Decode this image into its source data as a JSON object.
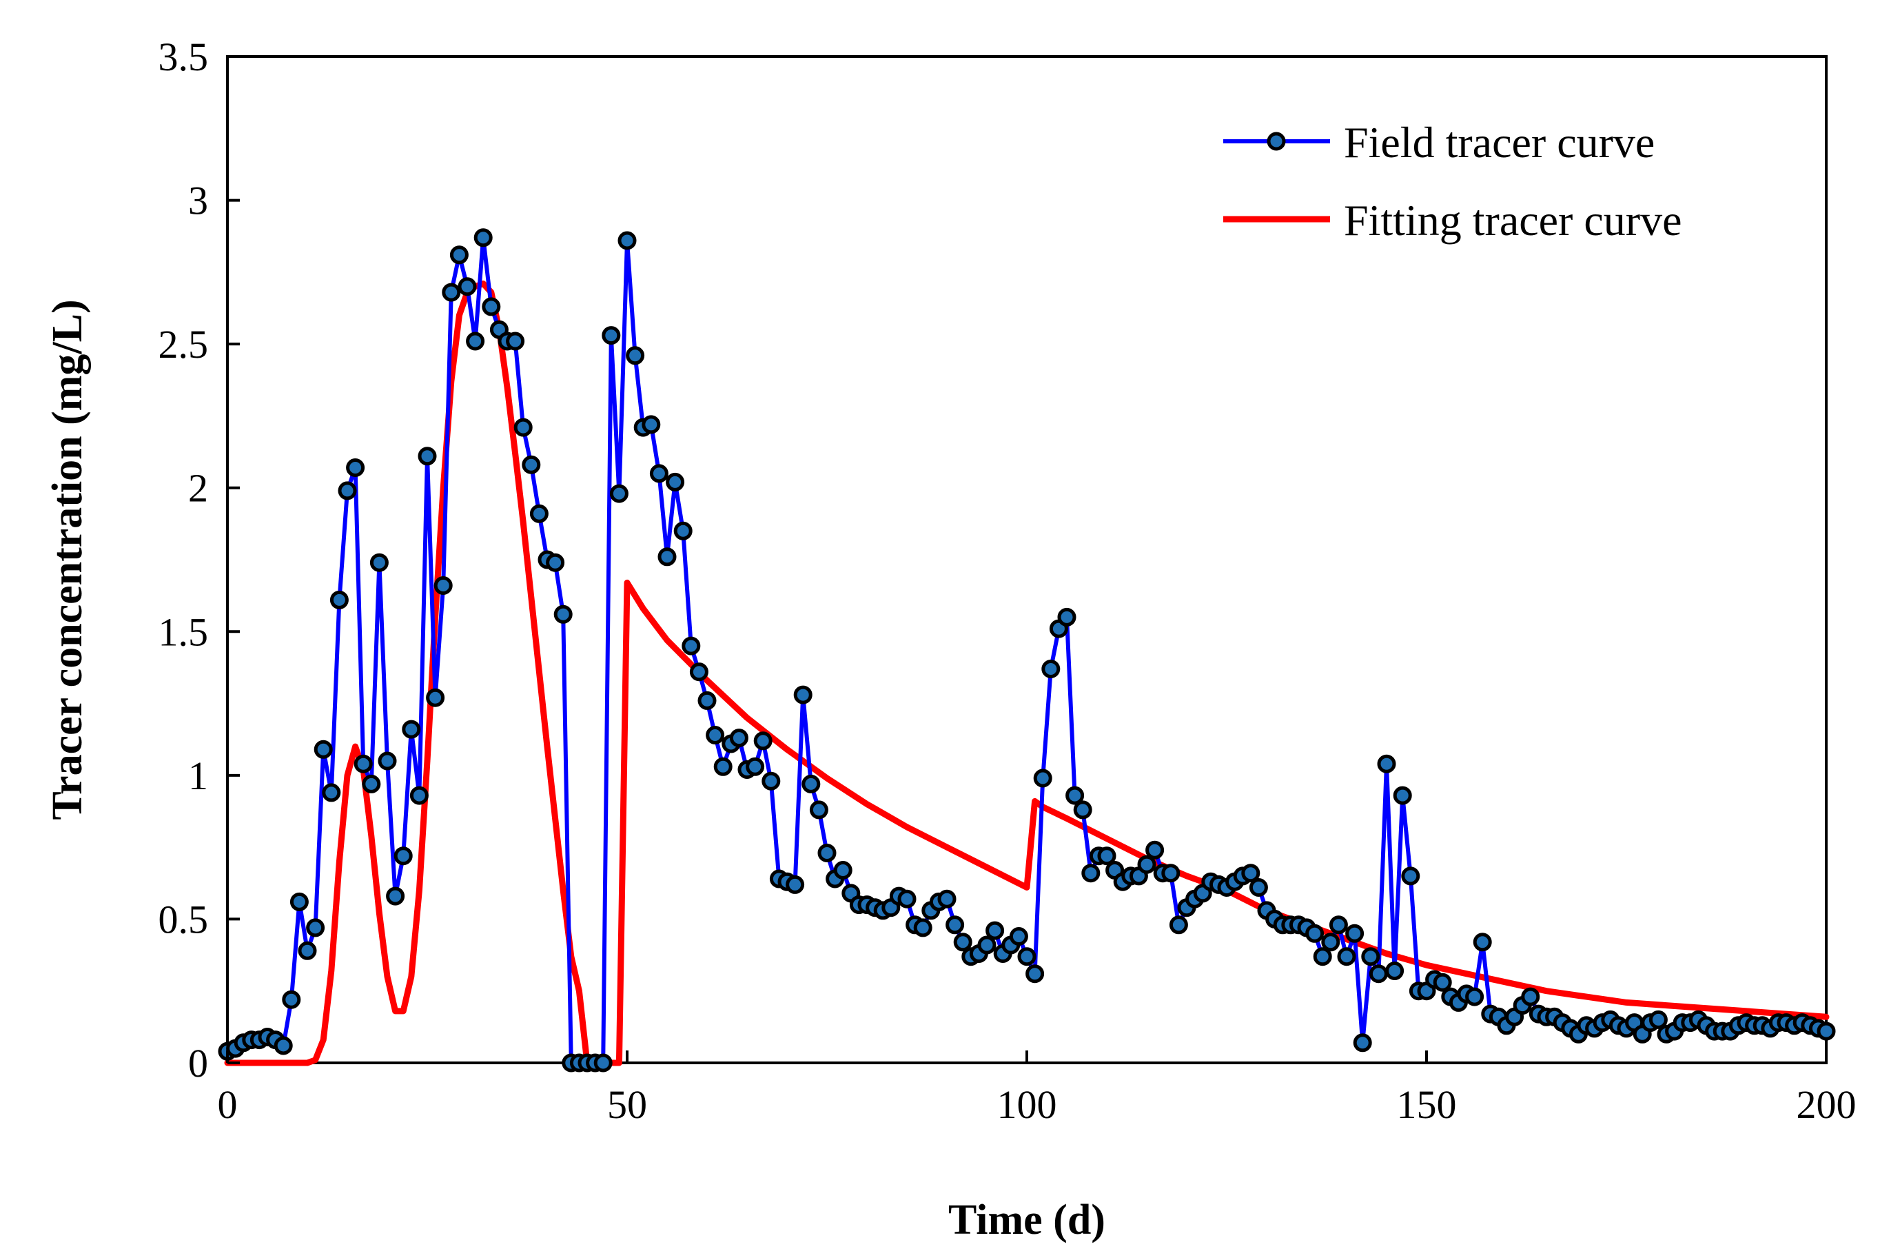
{
  "chart_data": {
    "type": "line",
    "title": "",
    "xlabel": "Time (d)",
    "ylabel": "Tracer concentration (mg/L)",
    "xlim": [
      0,
      200
    ],
    "ylim": [
      0,
      3.5
    ],
    "xticks": [
      0,
      50,
      100,
      150,
      200
    ],
    "xtick_labels": [
      "0",
      "50",
      "100",
      "150",
      "200"
    ],
    "yticks": [
      0,
      0.5,
      1,
      1.5,
      2,
      2.5,
      3,
      3.5
    ],
    "ytick_labels": [
      "0",
      "0.5",
      "1",
      "1.5",
      "2",
      "2.5",
      "3",
      "3.5"
    ],
    "grid": false,
    "legend_position": "top-right",
    "series": [
      {
        "name": "Field tracer curve",
        "style": "line-with-markers",
        "line_color": "#0000ff",
        "marker_fill": "#1f6fb4",
        "marker_edge": "#000000",
        "points": [
          [
            0,
            0.04
          ],
          [
            1,
            0.05
          ],
          [
            2,
            0.07
          ],
          [
            3,
            0.08
          ],
          [
            4,
            0.08
          ],
          [
            5,
            0.09
          ],
          [
            6,
            0.08
          ],
          [
            7,
            0.06
          ],
          [
            8,
            0.22
          ],
          [
            9,
            0.56
          ],
          [
            10,
            0.39
          ],
          [
            11,
            0.47
          ],
          [
            12,
            1.09
          ],
          [
            13,
            0.94
          ],
          [
            14,
            1.61
          ],
          [
            15,
            1.99
          ],
          [
            16,
            2.07
          ],
          [
            17,
            1.04
          ],
          [
            18,
            0.97
          ],
          [
            19,
            1.74
          ],
          [
            20,
            1.05
          ],
          [
            21,
            0.58
          ],
          [
            22,
            0.72
          ],
          [
            23,
            1.16
          ],
          [
            24,
            0.93
          ],
          [
            25,
            2.11
          ],
          [
            26,
            1.27
          ],
          [
            27,
            1.66
          ],
          [
            28,
            2.68
          ],
          [
            29,
            2.81
          ],
          [
            30,
            2.7
          ],
          [
            31,
            2.51
          ],
          [
            32,
            2.87
          ],
          [
            33,
            2.63
          ],
          [
            34,
            2.55
          ],
          [
            35,
            2.51
          ],
          [
            36,
            2.51
          ],
          [
            37,
            2.21
          ],
          [
            38,
            2.08
          ],
          [
            39,
            1.91
          ],
          [
            40,
            1.75
          ],
          [
            41,
            1.74
          ],
          [
            42,
            1.56
          ],
          [
            43,
            0.0
          ],
          [
            44,
            0.0
          ],
          [
            45,
            0.0
          ],
          [
            46,
            0.0
          ],
          [
            47,
            0.0
          ],
          [
            48,
            2.53
          ],
          [
            49,
            1.98
          ],
          [
            50,
            2.86
          ],
          [
            51,
            2.46
          ],
          [
            52,
            2.21
          ],
          [
            53,
            2.22
          ],
          [
            54,
            2.05
          ],
          [
            55,
            1.76
          ],
          [
            56,
            2.02
          ],
          [
            57,
            1.85
          ],
          [
            58,
            1.45
          ],
          [
            59,
            1.36
          ],
          [
            60,
            1.26
          ],
          [
            61,
            1.14
          ],
          [
            62,
            1.03
          ],
          [
            63,
            1.11
          ],
          [
            64,
            1.13
          ],
          [
            65,
            1.02
          ],
          [
            66,
            1.03
          ],
          [
            67,
            1.12
          ],
          [
            68,
            0.98
          ],
          [
            69,
            0.64
          ],
          [
            70,
            0.63
          ],
          [
            71,
            0.62
          ],
          [
            72,
            1.28
          ],
          [
            73,
            0.97
          ],
          [
            74,
            0.88
          ],
          [
            75,
            0.73
          ],
          [
            76,
            0.64
          ],
          [
            77,
            0.67
          ],
          [
            78,
            0.59
          ],
          [
            79,
            0.55
          ],
          [
            80,
            0.55
          ],
          [
            81,
            0.54
          ],
          [
            82,
            0.53
          ],
          [
            83,
            0.54
          ],
          [
            84,
            0.58
          ],
          [
            85,
            0.57
          ],
          [
            86,
            0.48
          ],
          [
            87,
            0.47
          ],
          [
            88,
            0.53
          ],
          [
            89,
            0.56
          ],
          [
            90,
            0.57
          ],
          [
            91,
            0.48
          ],
          [
            92,
            0.42
          ],
          [
            93,
            0.37
          ],
          [
            94,
            0.38
          ],
          [
            95,
            0.41
          ],
          [
            96,
            0.46
          ],
          [
            97,
            0.38
          ],
          [
            98,
            0.41
          ],
          [
            99,
            0.44
          ],
          [
            100,
            0.37
          ],
          [
            101,
            0.31
          ],
          [
            102,
            0.99
          ],
          [
            103,
            1.37
          ],
          [
            104,
            1.51
          ],
          [
            105,
            1.55
          ],
          [
            106,
            0.93
          ],
          [
            107,
            0.88
          ],
          [
            108,
            0.66
          ],
          [
            109,
            0.72
          ],
          [
            110,
            0.72
          ],
          [
            111,
            0.67
          ],
          [
            112,
            0.63
          ],
          [
            113,
            0.65
          ],
          [
            114,
            0.65
          ],
          [
            115,
            0.69
          ],
          [
            116,
            0.74
          ],
          [
            117,
            0.66
          ],
          [
            118,
            0.66
          ],
          [
            119,
            0.48
          ],
          [
            120,
            0.54
          ],
          [
            121,
            0.57
          ],
          [
            122,
            0.59
          ],
          [
            123,
            0.63
          ],
          [
            124,
            0.62
          ],
          [
            125,
            0.61
          ],
          [
            126,
            0.63
          ],
          [
            127,
            0.65
          ],
          [
            128,
            0.66
          ],
          [
            129,
            0.61
          ],
          [
            130,
            0.53
          ],
          [
            131,
            0.5
          ],
          [
            132,
            0.48
          ],
          [
            133,
            0.48
          ],
          [
            134,
            0.48
          ],
          [
            135,
            0.47
          ],
          [
            136,
            0.45
          ],
          [
            137,
            0.37
          ],
          [
            138,
            0.42
          ],
          [
            139,
            0.48
          ],
          [
            140,
            0.37
          ],
          [
            141,
            0.45
          ],
          [
            142,
            0.07
          ],
          [
            143,
            0.37
          ],
          [
            144,
            0.31
          ],
          [
            145,
            1.04
          ],
          [
            146,
            0.32
          ],
          [
            147,
            0.93
          ],
          [
            148,
            0.65
          ],
          [
            149,
            0.25
          ],
          [
            150,
            0.25
          ],
          [
            151,
            0.29
          ],
          [
            152,
            0.28
          ],
          [
            153,
            0.23
          ],
          [
            154,
            0.21
          ],
          [
            155,
            0.24
          ],
          [
            156,
            0.23
          ],
          [
            157,
            0.42
          ],
          [
            158,
            0.17
          ],
          [
            159,
            0.16
          ],
          [
            160,
            0.13
          ],
          [
            161,
            0.16
          ],
          [
            162,
            0.2
          ],
          [
            163,
            0.23
          ],
          [
            164,
            0.17
          ],
          [
            165,
            0.16
          ],
          [
            166,
            0.16
          ],
          [
            167,
            0.14
          ],
          [
            168,
            0.12
          ],
          [
            169,
            0.1
          ],
          [
            170,
            0.13
          ],
          [
            171,
            0.12
          ],
          [
            172,
            0.14
          ],
          [
            173,
            0.15
          ],
          [
            174,
            0.13
          ],
          [
            175,
            0.12
          ],
          [
            176,
            0.14
          ],
          [
            177,
            0.1
          ],
          [
            178,
            0.14
          ],
          [
            179,
            0.15
          ],
          [
            180,
            0.1
          ],
          [
            181,
            0.11
          ],
          [
            182,
            0.14
          ],
          [
            183,
            0.14
          ],
          [
            184,
            0.15
          ],
          [
            185,
            0.13
          ],
          [
            186,
            0.11
          ],
          [
            187,
            0.11
          ],
          [
            188,
            0.11
          ],
          [
            189,
            0.13
          ],
          [
            190,
            0.14
          ],
          [
            191,
            0.13
          ],
          [
            192,
            0.13
          ],
          [
            193,
            0.12
          ],
          [
            194,
            0.14
          ],
          [
            195,
            0.14
          ],
          [
            196,
            0.13
          ],
          [
            197,
            0.14
          ],
          [
            198,
            0.13
          ],
          [
            199,
            0.12
          ],
          [
            200,
            0.11
          ]
        ]
      },
      {
        "name": "Fitting tracer curve",
        "style": "line",
        "line_color": "#ff0000",
        "points": [
          [
            0,
            0
          ],
          [
            10,
            0
          ],
          [
            11,
            0.01
          ],
          [
            12,
            0.08
          ],
          [
            13,
            0.32
          ],
          [
            14,
            0.7
          ],
          [
            15,
            1.0
          ],
          [
            16,
            1.1
          ],
          [
            17,
            1.02
          ],
          [
            18,
            0.79
          ],
          [
            19,
            0.52
          ],
          [
            20,
            0.3
          ],
          [
            21,
            0.18
          ],
          [
            22,
            0.18
          ],
          [
            23,
            0.3
          ],
          [
            24,
            0.6
          ],
          [
            25,
            1.05
          ],
          [
            26,
            1.55
          ],
          [
            27,
            2.0
          ],
          [
            28,
            2.37
          ],
          [
            29,
            2.6
          ],
          [
            30,
            2.68
          ],
          [
            31,
            2.7
          ],
          [
            32,
            2.71
          ],
          [
            33,
            2.68
          ],
          [
            34,
            2.55
          ],
          [
            35,
            2.35
          ],
          [
            36,
            2.12
          ],
          [
            37,
            1.88
          ],
          [
            38,
            1.62
          ],
          [
            39,
            1.36
          ],
          [
            40,
            1.1
          ],
          [
            41,
            0.85
          ],
          [
            42,
            0.6
          ],
          [
            43,
            0.37
          ],
          [
            44,
            0.25
          ],
          [
            45,
            0.0
          ],
          [
            49,
            0.0
          ],
          [
            50,
            1.67
          ],
          [
            52,
            1.58
          ],
          [
            55,
            1.47
          ],
          [
            60,
            1.33
          ],
          [
            65,
            1.2
          ],
          [
            70,
            1.09
          ],
          [
            75,
            0.99
          ],
          [
            80,
            0.9
          ],
          [
            85,
            0.82
          ],
          [
            90,
            0.75
          ],
          [
            95,
            0.68
          ],
          [
            100,
            0.61
          ],
          [
            101,
            0.91
          ],
          [
            102,
            0.89
          ],
          [
            105,
            0.85
          ],
          [
            110,
            0.78
          ],
          [
            115,
            0.71
          ],
          [
            120,
            0.65
          ],
          [
            125,
            0.6
          ],
          [
            130,
            0.53
          ],
          [
            135,
            0.48
          ],
          [
            140,
            0.43
          ],
          [
            145,
            0.38
          ],
          [
            150,
            0.34
          ],
          [
            155,
            0.31
          ],
          [
            160,
            0.28
          ],
          [
            165,
            0.25
          ],
          [
            170,
            0.23
          ],
          [
            175,
            0.21
          ],
          [
            180,
            0.2
          ],
          [
            185,
            0.19
          ],
          [
            190,
            0.18
          ],
          [
            195,
            0.17
          ],
          [
            200,
            0.16
          ]
        ]
      }
    ]
  }
}
